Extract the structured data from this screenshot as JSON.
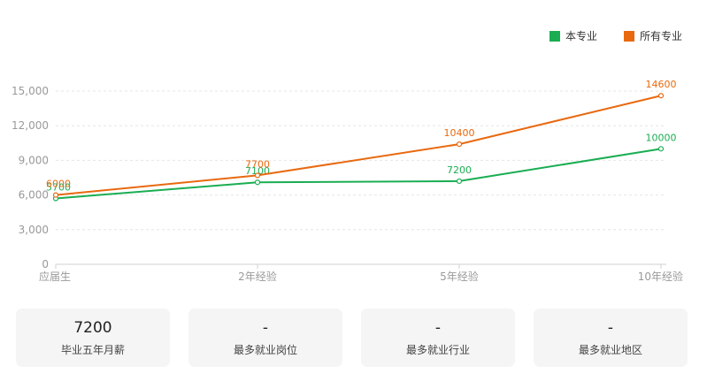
{
  "legend": [
    {
      "name": "本专业",
      "color": "#1aad52"
    },
    {
      "name": "所有专业",
      "color": "#e8690f"
    }
  ],
  "chart_data": {
    "type": "line",
    "categories": [
      "应届生",
      "2年经验",
      "5年经验",
      "10年经验"
    ],
    "series": [
      {
        "name": "本专业",
        "color": "#1aad52",
        "values": [
          5700,
          7100,
          7200,
          10000
        ]
      },
      {
        "name": "所有专业",
        "color": "#e8690f",
        "values": [
          6000,
          7700,
          10400,
          14600
        ]
      }
    ],
    "yticks": [
      "0",
      "3,000",
      "6,000",
      "9,000",
      "12,000",
      "15,000"
    ],
    "ylim": [
      0,
      15000
    ],
    "grid": true,
    "legend_position": "top-right"
  },
  "cards": [
    {
      "value": "7200",
      "label": "毕业五年月薪"
    },
    {
      "value": "-",
      "label": "最多就业岗位"
    },
    {
      "value": "-",
      "label": "最多就业行业"
    },
    {
      "value": "-",
      "label": "最多就业地区"
    }
  ]
}
